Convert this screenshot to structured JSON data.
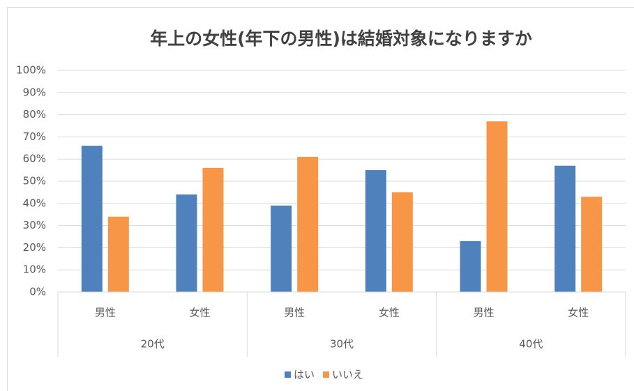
{
  "chart_data": {
    "type": "bar",
    "title": "年上の女性(年下の男性)は結婚対象になりますか",
    "categories": [
      "男性",
      "女性",
      "男性",
      "女性",
      "男性",
      "女性"
    ],
    "category_groups": [
      "20代",
      "30代",
      "40代"
    ],
    "series": [
      {
        "name": "はい",
        "color": "#4f81bd",
        "values": [
          66,
          44,
          39,
          55,
          23,
          57
        ]
      },
      {
        "name": "いいえ",
        "color": "#f79646",
        "values": [
          34,
          56,
          61,
          45,
          77,
          43
        ]
      }
    ],
    "ylim": [
      0,
      100
    ],
    "yticks": [
      {
        "value": 0,
        "label": "0%"
      },
      {
        "value": 10,
        "label": "10%"
      },
      {
        "value": 20,
        "label": "20%"
      },
      {
        "value": 30,
        "label": "30%"
      },
      {
        "value": 40,
        "label": "40%"
      },
      {
        "value": 50,
        "label": "50%"
      },
      {
        "value": 60,
        "label": "60%"
      },
      {
        "value": 70,
        "label": "70%"
      },
      {
        "value": 80,
        "label": "80%"
      },
      {
        "value": 90,
        "label": "90%"
      },
      {
        "value": 100,
        "label": "100%"
      }
    ],
    "grid": true,
    "legend": "bottom"
  }
}
